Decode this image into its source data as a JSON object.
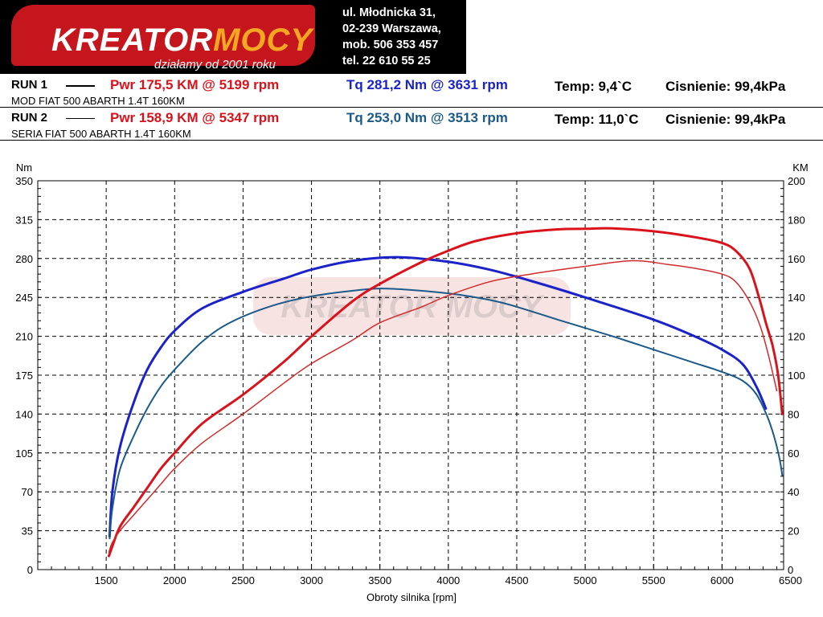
{
  "header": {
    "logo_text_main": "KREATOR",
    "logo_text_accent": "MOCY",
    "logo_tagline": "działamy od 2001 roku",
    "address": [
      "ul. Młodnicka 31,",
      "02-239  Warszawa,",
      "mob.  506 353 457",
      "tel.  22 610 55 25"
    ]
  },
  "runs": [
    {
      "label": "RUN 1",
      "pwr": "Pwr  175,5 KM @ 5199 rpm",
      "tq": "Tq 281,2 Nm @ 3631 rpm",
      "temp": "Temp: 9,4`C",
      "pressure": "Cisnienie: 99,4kPa",
      "desc": "MOD FIAT 500 ABARTH 1.4T 160KM"
    },
    {
      "label": "RUN 2",
      "pwr": "Pwr  158,9 KM @ 5347 rpm",
      "tq": "Tq 253,0 Nm @ 3513 rpm",
      "temp": "Temp: 11,0`C",
      "pressure": "Cisnienie: 99,4kPa",
      "desc": "SERIA  FIAT 500 ABARTH 1.4T 160KM"
    }
  ],
  "colors": {
    "pwr": "#d9121b",
    "tq_run1": "#1a22c8",
    "tq_run2": "#1b5a8a",
    "pwr_run2": "#d22a2a",
    "grid": "#000000"
  },
  "chart_data": {
    "type": "line",
    "xlabel": "Obroty silnika [rpm]",
    "ylabel_left": "Nm",
    "ylabel_right": "KM",
    "xlim": [
      1000,
      6450
    ],
    "ylim_left": [
      0,
      350
    ],
    "ylim_right": [
      0,
      200
    ],
    "x_ticks": [
      1500,
      2000,
      2500,
      3000,
      3500,
      4000,
      4500,
      5000,
      5500,
      6000,
      6500
    ],
    "y_ticks_left": [
      0,
      35,
      70,
      105,
      140,
      175,
      210,
      245,
      280,
      315,
      350
    ],
    "y_ticks_right": [
      0,
      20,
      40,
      60,
      80,
      100,
      120,
      140,
      160,
      180,
      200
    ],
    "grid": true,
    "watermark": "KREATOR MOCY",
    "series": [
      {
        "name": "Tq RUN 1",
        "axis": "left",
        "color": "#1a22c8",
        "width": 3,
        "points": [
          [
            1525,
            30
          ],
          [
            1545,
            70
          ],
          [
            1600,
            110
          ],
          [
            1700,
            150
          ],
          [
            1800,
            180
          ],
          [
            1900,
            200
          ],
          [
            2000,
            215
          ],
          [
            2200,
            235
          ],
          [
            2500,
            250
          ],
          [
            2800,
            262
          ],
          [
            3000,
            270
          ],
          [
            3300,
            278
          ],
          [
            3631,
            281.2
          ],
          [
            4000,
            277
          ],
          [
            4300,
            270
          ],
          [
            4600,
            260
          ],
          [
            5000,
            245
          ],
          [
            5500,
            225
          ],
          [
            5800,
            210
          ],
          [
            6000,
            198
          ],
          [
            6150,
            185
          ],
          [
            6250,
            165
          ],
          [
            6320,
            145
          ]
        ]
      },
      {
        "name": "Tq RUN 2",
        "axis": "left",
        "color": "#1b5a8a",
        "width": 2,
        "points": [
          [
            1525,
            28
          ],
          [
            1545,
            55
          ],
          [
            1600,
            90
          ],
          [
            1700,
            120
          ],
          [
            1800,
            145
          ],
          [
            1900,
            165
          ],
          [
            2000,
            180
          ],
          [
            2200,
            205
          ],
          [
            2400,
            222
          ],
          [
            2700,
            237
          ],
          [
            3000,
            246
          ],
          [
            3300,
            251
          ],
          [
            3513,
            253
          ],
          [
            3800,
            251
          ],
          [
            4100,
            247
          ],
          [
            4400,
            240
          ],
          [
            4800,
            225
          ],
          [
            5200,
            210
          ],
          [
            5500,
            198
          ],
          [
            5800,
            186
          ],
          [
            6000,
            178
          ],
          [
            6150,
            170
          ],
          [
            6250,
            158
          ],
          [
            6330,
            138
          ],
          [
            6380,
            120
          ],
          [
            6420,
            100
          ],
          [
            6440,
            85
          ]
        ]
      },
      {
        "name": "Pwr RUN 1",
        "axis": "right",
        "color": "#d9121b",
        "width": 3,
        "points": [
          [
            1520,
            7
          ],
          [
            1545,
            12
          ],
          [
            1600,
            22
          ],
          [
            1700,
            32
          ],
          [
            1800,
            42
          ],
          [
            1900,
            52
          ],
          [
            2000,
            60
          ],
          [
            2200,
            75
          ],
          [
            2500,
            90
          ],
          [
            2800,
            107
          ],
          [
            3000,
            120
          ],
          [
            3300,
            138
          ],
          [
            3500,
            147
          ],
          [
            3800,
            158
          ],
          [
            4000,
            164
          ],
          [
            4200,
            169
          ],
          [
            4500,
            173
          ],
          [
            4800,
            175
          ],
          [
            5000,
            175.3
          ],
          [
            5199,
            175.5
          ],
          [
            5500,
            174
          ],
          [
            5800,
            171
          ],
          [
            6000,
            168
          ],
          [
            6100,
            164
          ],
          [
            6200,
            155
          ],
          [
            6270,
            140
          ],
          [
            6320,
            127
          ],
          [
            6370,
            115
          ],
          [
            6410,
            100
          ],
          [
            6440,
            80
          ]
        ]
      },
      {
        "name": "Pwr RUN 2",
        "axis": "right",
        "color": "#d22a2a",
        "width": 1.5,
        "points": [
          [
            1520,
            9
          ],
          [
            1545,
            14
          ],
          [
            1600,
            20
          ],
          [
            1700,
            28
          ],
          [
            1800,
            36
          ],
          [
            1900,
            44
          ],
          [
            2000,
            52
          ],
          [
            2200,
            65
          ],
          [
            2500,
            80
          ],
          [
            2800,
            96
          ],
          [
            3000,
            106
          ],
          [
            3300,
            118
          ],
          [
            3500,
            127
          ],
          [
            3800,
            135
          ],
          [
            4000,
            141
          ],
          [
            4300,
            148
          ],
          [
            4600,
            152
          ],
          [
            5000,
            156
          ],
          [
            5347,
            158.9
          ],
          [
            5600,
            157
          ],
          [
            5800,
            155
          ],
          [
            6000,
            152
          ],
          [
            6100,
            148
          ],
          [
            6200,
            138
          ],
          [
            6280,
            125
          ],
          [
            6340,
            110
          ],
          [
            6400,
            92
          ]
        ]
      }
    ]
  }
}
